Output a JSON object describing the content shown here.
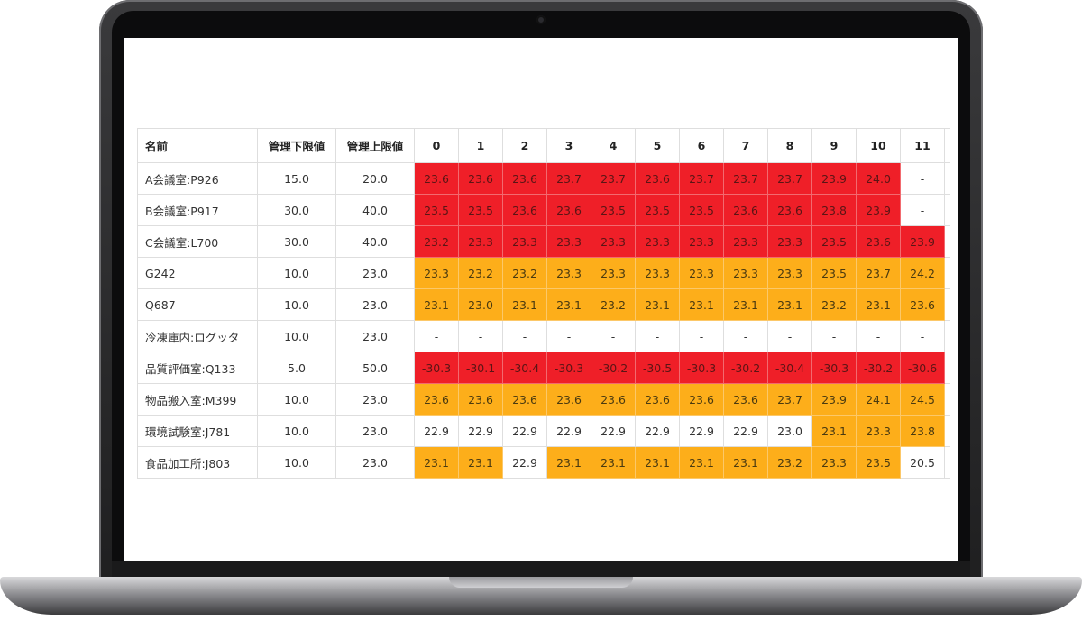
{
  "colors": {
    "red": "#ef1f28",
    "orange": "#fdae1a",
    "none": "#ffffff"
  },
  "table": {
    "headers": {
      "name": "名前",
      "lower": "管理下限値",
      "upper": "管理上限値",
      "hours": [
        "0",
        "1",
        "2",
        "3",
        "4",
        "5",
        "6",
        "7",
        "8",
        "9",
        "10",
        "11"
      ]
    },
    "rows": [
      {
        "name": "A会議室:P926",
        "lower": "15.0",
        "upper": "20.0",
        "values": [
          "23.6",
          "23.6",
          "23.6",
          "23.7",
          "23.7",
          "23.6",
          "23.7",
          "23.7",
          "23.7",
          "23.9",
          "24.0",
          "-"
        ],
        "status": [
          "r",
          "r",
          "r",
          "r",
          "r",
          "r",
          "r",
          "r",
          "r",
          "r",
          "r",
          ""
        ]
      },
      {
        "name": "B会議室:P917",
        "lower": "30.0",
        "upper": "40.0",
        "values": [
          "23.5",
          "23.5",
          "23.6",
          "23.6",
          "23.5",
          "23.5",
          "23.5",
          "23.6",
          "23.6",
          "23.8",
          "23.9",
          "-"
        ],
        "status": [
          "r",
          "r",
          "r",
          "r",
          "r",
          "r",
          "r",
          "r",
          "r",
          "r",
          "r",
          ""
        ]
      },
      {
        "name": "C会議室:L700",
        "lower": "30.0",
        "upper": "40.0",
        "values": [
          "23.2",
          "23.3",
          "23.3",
          "23.3",
          "23.3",
          "23.3",
          "23.3",
          "23.3",
          "23.3",
          "23.5",
          "23.6",
          "23.9"
        ],
        "status": [
          "r",
          "r",
          "r",
          "r",
          "r",
          "r",
          "r",
          "r",
          "r",
          "r",
          "r",
          "r"
        ]
      },
      {
        "name": "G242",
        "lower": "10.0",
        "upper": "23.0",
        "values": [
          "23.3",
          "23.2",
          "23.2",
          "23.3",
          "23.3",
          "23.3",
          "23.3",
          "23.3",
          "23.3",
          "23.5",
          "23.7",
          "24.2"
        ],
        "status": [
          "o",
          "o",
          "o",
          "o",
          "o",
          "o",
          "o",
          "o",
          "o",
          "o",
          "o",
          "o"
        ]
      },
      {
        "name": "Q687",
        "lower": "10.0",
        "upper": "23.0",
        "values": [
          "23.1",
          "23.0",
          "23.1",
          "23.1",
          "23.2",
          "23.1",
          "23.1",
          "23.1",
          "23.1",
          "23.2",
          "23.1",
          "23.6"
        ],
        "status": [
          "o",
          "o",
          "o",
          "o",
          "o",
          "o",
          "o",
          "o",
          "o",
          "o",
          "o",
          "o"
        ]
      },
      {
        "name": "冷凍庫内:ログッタ",
        "lower": "10.0",
        "upper": "23.0",
        "values": [
          "-",
          "-",
          "-",
          "-",
          "-",
          "-",
          "-",
          "-",
          "-",
          "-",
          "-",
          "-"
        ],
        "status": [
          "",
          "",
          "",
          "",
          "",
          "",
          "",
          "",
          "",
          "",
          "",
          ""
        ]
      },
      {
        "name": "品質評価室:Q133",
        "lower": "5.0",
        "upper": "50.0",
        "values": [
          "-30.3",
          "-30.1",
          "-30.4",
          "-30.3",
          "-30.2",
          "-30.5",
          "-30.3",
          "-30.2",
          "-30.4",
          "-30.3",
          "-30.2",
          "-30.6"
        ],
        "status": [
          "r",
          "r",
          "r",
          "r",
          "r",
          "r",
          "r",
          "r",
          "r",
          "r",
          "r",
          "r"
        ]
      },
      {
        "name": "物品搬入室:M399",
        "lower": "10.0",
        "upper": "23.0",
        "values": [
          "23.6",
          "23.6",
          "23.6",
          "23.6",
          "23.6",
          "23.6",
          "23.6",
          "23.6",
          "23.7",
          "23.9",
          "24.1",
          "24.5"
        ],
        "status": [
          "o",
          "o",
          "o",
          "o",
          "o",
          "o",
          "o",
          "o",
          "o",
          "o",
          "o",
          "o"
        ]
      },
      {
        "name": "環境試験室:J781",
        "lower": "10.0",
        "upper": "23.0",
        "values": [
          "22.9",
          "22.9",
          "22.9",
          "22.9",
          "22.9",
          "22.9",
          "22.9",
          "22.9",
          "23.0",
          "23.1",
          "23.3",
          "23.8"
        ],
        "status": [
          "",
          "",
          "",
          "",
          "",
          "",
          "",
          "",
          "",
          "o",
          "o",
          "o"
        ]
      },
      {
        "name": "食品加工所:J803",
        "lower": "10.0",
        "upper": "23.0",
        "values": [
          "23.1",
          "23.1",
          "22.9",
          "23.1",
          "23.1",
          "23.1",
          "23.1",
          "23.1",
          "23.2",
          "23.3",
          "23.5",
          "20.5"
        ],
        "status": [
          "o",
          "o",
          "",
          "o",
          "o",
          "o",
          "o",
          "o",
          "o",
          "o",
          "o",
          ""
        ]
      }
    ]
  }
}
